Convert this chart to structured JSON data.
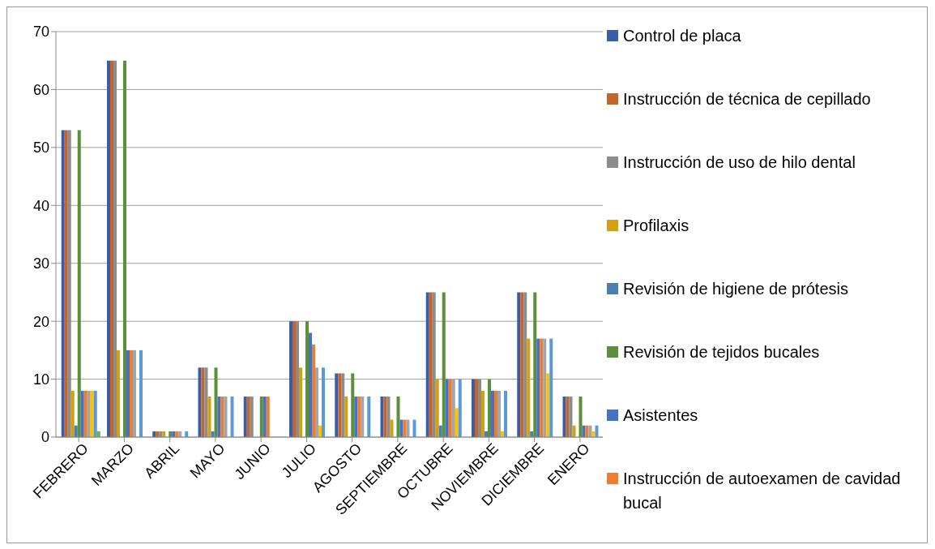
{
  "chart_data": {
    "type": "bar",
    "categories": [
      "FEBRERO",
      "MARZO",
      "ABRIL",
      "MAYO",
      "JUNIO",
      "JULIO",
      "AGOSTO",
      "SEPTIEMBRE",
      "OCTUBRE",
      "NOVIEMBRE",
      "DICIEMBRE",
      "ENERO"
    ],
    "series": [
      {
        "name": "Control de placa",
        "color": "#3a5da8",
        "values": [
          53,
          65,
          1,
          12,
          7,
          20,
          11,
          7,
          25,
          10,
          25,
          7
        ]
      },
      {
        "name": "Instrucción de técnica de cepillado",
        "color": "#c5642c",
        "values": [
          53,
          65,
          1,
          12,
          7,
          20,
          11,
          7,
          25,
          10,
          25,
          7
        ]
      },
      {
        "name": "Instrucción de uso de hilo dental",
        "color": "#8c8c8c",
        "values": [
          53,
          65,
          1,
          12,
          7,
          20,
          11,
          7,
          25,
          10,
          25,
          7
        ]
      },
      {
        "name": "Profilaxis",
        "color": "#d4a00f",
        "values": [
          8,
          15,
          1,
          7,
          0,
          12,
          7,
          3,
          10,
          8,
          17,
          2
        ]
      },
      {
        "name": "Revisión de higiene de prótesis",
        "color": "#4a7fb5",
        "values": [
          2,
          0,
          0,
          1,
          0,
          0,
          0,
          0,
          2,
          1,
          1,
          0
        ]
      },
      {
        "name": "Revisión de tejidos bucales",
        "color": "#5b8f3a",
        "values": [
          53,
          65,
          1,
          12,
          7,
          20,
          11,
          7,
          25,
          10,
          25,
          7
        ]
      },
      {
        "name": "Asistentes",
        "color": "#4472c4",
        "values": [
          8,
          15,
          1,
          7,
          7,
          18,
          7,
          3,
          10,
          8,
          17,
          2
        ]
      },
      {
        "name": "Instrucción de autoexamen de cavidad bucal",
        "color": "#ed7d31",
        "values": [
          8,
          15,
          1,
          7,
          7,
          16,
          7,
          3,
          10,
          8,
          17,
          2
        ]
      },
      {
        "color": "#a5a5a5",
        "values": [
          8,
          15,
          1,
          7,
          0,
          12,
          7,
          3,
          10,
          8,
          17,
          2
        ]
      },
      {
        "color": "#ffc000",
        "values": [
          8,
          0,
          0,
          0,
          0,
          2,
          0,
          0,
          5,
          1,
          11,
          1
        ]
      },
      {
        "color": "#5b9bd5",
        "values": [
          8,
          15,
          1,
          7,
          0,
          12,
          7,
          3,
          10,
          8,
          17,
          2
        ]
      },
      {
        "color": "#70ad47",
        "values": [
          1,
          0,
          0,
          0,
          0,
          0,
          0,
          0,
          0,
          0,
          0,
          0
        ]
      }
    ],
    "ylim": [
      0,
      70
    ],
    "yticks": [
      0,
      10,
      20,
      30,
      40,
      50,
      60,
      70
    ],
    "grid": "y",
    "legend": "right"
  }
}
